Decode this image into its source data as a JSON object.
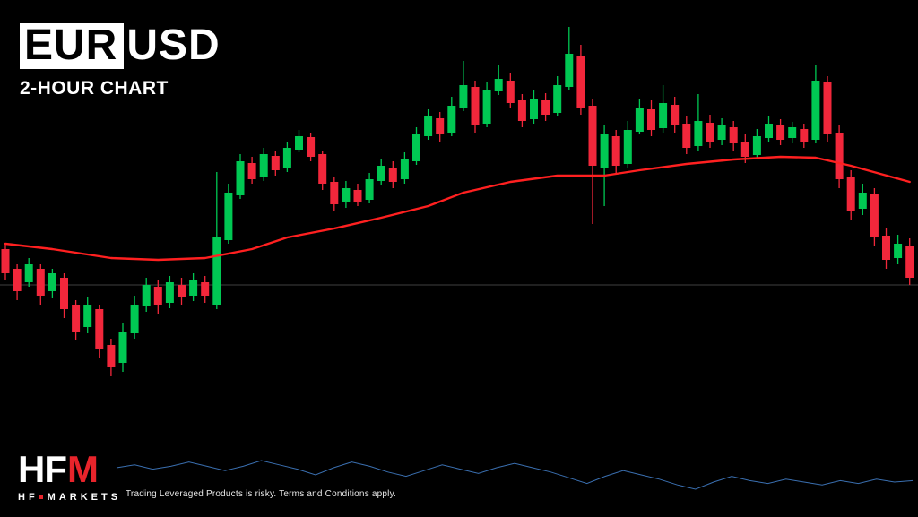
{
  "title": {
    "symbol_base": "EUR",
    "symbol_quote": "USD",
    "subtitle": "2-HOUR CHART"
  },
  "branding": {
    "logo_hf": "HF",
    "logo_m": "M",
    "word_1": "HF",
    "word_2": "MARKETS",
    "brand_red": "#e8242b"
  },
  "disclaimer": "Trading Leveraged Products is risky. Terms and Conditions apply.",
  "colors": {
    "background": "#000000",
    "bull": "#00c853",
    "bear": "#f2273b",
    "ma_line": "#ff2020",
    "gridline": "#3f3f3f",
    "indicator_line": "#3a6fb0"
  },
  "chart_data": {
    "type": "candlestick",
    "symbol": "EURUSD",
    "timeframe": "2-hour",
    "title": "EURUSD 2-Hour Chart",
    "axes_visible": false,
    "grid": "single horizontal line",
    "legend_position": "none",
    "gridline_price": 1.0782,
    "price_range_estimate": [
      1.068,
      1.107
    ],
    "candle_format": "ohlc",
    "candles": [
      [
        1.0822,
        1.0828,
        1.0788,
        1.0795
      ],
      [
        1.08,
        1.0805,
        1.0765,
        1.0775
      ],
      [
        1.0785,
        1.0812,
        1.078,
        1.0805
      ],
      [
        1.08,
        1.0805,
        1.076,
        1.077
      ],
      [
        1.0775,
        1.08,
        1.0767,
        1.0795
      ],
      [
        1.079,
        1.0795,
        1.0745,
        1.0755
      ],
      [
        1.076,
        1.0765,
        1.072,
        1.073
      ],
      [
        1.0735,
        1.0768,
        1.0728,
        1.076
      ],
      [
        1.0755,
        1.076,
        1.07,
        1.071
      ],
      [
        1.0715,
        1.0722,
        1.068,
        1.069
      ],
      [
        1.0695,
        1.074,
        1.0685,
        1.073
      ],
      [
        1.0728,
        1.077,
        1.0722,
        1.076
      ],
      [
        1.0758,
        1.079,
        1.0752,
        1.0782
      ],
      [
        1.078,
        1.0788,
        1.075,
        1.076
      ],
      [
        1.0762,
        1.0792,
        1.0756,
        1.0785
      ],
      [
        1.0782,
        1.079,
        1.076,
        1.0768
      ],
      [
        1.077,
        1.0795,
        1.0764,
        1.0788
      ],
      [
        1.0785,
        1.0792,
        1.0762,
        1.077
      ],
      [
        1.076,
        1.0908,
        1.0755,
        1.0835
      ],
      [
        1.0832,
        1.0895,
        1.0828,
        1.0885
      ],
      [
        1.0882,
        1.0928,
        1.0878,
        1.092
      ],
      [
        1.0918,
        1.0925,
        1.0895,
        1.09
      ],
      [
        1.0902,
        1.0935,
        1.0898,
        1.0928
      ],
      [
        1.0926,
        1.0932,
        1.0904,
        1.091
      ],
      [
        1.0912,
        1.0942,
        1.0908,
        1.0935
      ],
      [
        1.0933,
        1.0955,
        1.093,
        1.0948
      ],
      [
        1.0947,
        1.0952,
        1.092,
        1.0925
      ],
      [
        1.0928,
        1.0932,
        1.0888,
        1.0895
      ],
      [
        1.0897,
        1.0902,
        1.0865,
        1.0872
      ],
      [
        1.0874,
        1.0898,
        1.0868,
        1.089
      ],
      [
        1.0888,
        1.0895,
        1.087,
        1.0875
      ],
      [
        1.0877,
        1.0907,
        1.0873,
        1.09
      ],
      [
        1.0898,
        1.0922,
        1.0894,
        1.0915
      ],
      [
        1.0913,
        1.092,
        1.089,
        1.0897
      ],
      [
        1.09,
        1.093,
        1.0895,
        1.0922
      ],
      [
        1.092,
        1.0958,
        1.0916,
        1.095
      ],
      [
        1.0948,
        1.0978,
        1.0944,
        1.097
      ],
      [
        1.0968,
        1.0975,
        1.0942,
        1.095
      ],
      [
        1.0952,
        1.0992,
        1.0948,
        1.0982
      ],
      [
        1.098,
        1.1032,
        1.0976,
        1.1005
      ],
      [
        1.1003,
        1.101,
        1.0952,
        1.096
      ],
      [
        1.0962,
        1.1008,
        1.0958,
        1.1
      ],
      [
        1.0998,
        1.1028,
        1.0994,
        1.1012
      ],
      [
        1.101,
        1.1018,
        1.098,
        1.0985
      ],
      [
        1.0988,
        1.0995,
        1.0958,
        1.0965
      ],
      [
        1.0967,
        1.1,
        1.0962,
        1.099
      ],
      [
        1.0988,
        1.0996,
        1.0965,
        1.0972
      ],
      [
        1.0974,
        1.1015,
        1.097,
        1.1005
      ],
      [
        1.1003,
        1.107,
        1.1,
        1.104
      ],
      [
        1.1038,
        1.105,
        1.0972,
        1.098
      ],
      [
        1.0982,
        1.099,
        1.085,
        1.0915
      ],
      [
        1.0912,
        1.096,
        1.087,
        1.095
      ],
      [
        1.0948,
        1.0955,
        1.0905,
        1.0915
      ],
      [
        1.0917,
        1.0965,
        1.0912,
        1.0955
      ],
      [
        1.0953,
        1.099,
        1.095,
        1.098
      ],
      [
        1.0978,
        1.0988,
        1.0948,
        1.0955
      ],
      [
        1.0957,
        1.1005,
        1.0952,
        1.0985
      ],
      [
        1.0983,
        1.0992,
        1.0952,
        1.096
      ],
      [
        1.0962,
        1.097,
        1.0928,
        1.0935
      ],
      [
        1.0937,
        1.0995,
        1.0932,
        1.0965
      ],
      [
        1.0963,
        1.0972,
        1.0935,
        1.0942
      ],
      [
        1.0944,
        1.0968,
        1.0938,
        1.096
      ],
      [
        1.0958,
        1.0965,
        1.0932,
        1.094
      ],
      [
        1.0942,
        1.095,
        1.0918,
        1.0925
      ],
      [
        1.0927,
        1.0956,
        1.0922,
        1.0948
      ],
      [
        1.0946,
        1.097,
        1.0942,
        1.0962
      ],
      [
        1.096,
        1.0967,
        1.0938,
        1.0944
      ],
      [
        1.0946,
        1.0964,
        1.094,
        1.0958
      ],
      [
        1.0956,
        1.0962,
        1.0935,
        1.0942
      ],
      [
        1.0944,
        1.1028,
        1.094,
        1.101
      ],
      [
        1.1008,
        1.1015,
        1.0942,
        1.095
      ],
      [
        1.0952,
        1.096,
        1.089,
        1.09
      ],
      [
        1.0902,
        1.091,
        1.0855,
        1.0865
      ],
      [
        1.0867,
        1.0895,
        1.086,
        1.0885
      ],
      [
        1.0883,
        1.089,
        1.0825,
        1.0835
      ],
      [
        1.0837,
        1.0845,
        1.08,
        1.081
      ],
      [
        1.0812,
        1.0838,
        1.0805,
        1.0828
      ],
      [
        1.0826,
        1.0834,
        1.0782,
        1.079
      ]
    ],
    "overlays": [
      {
        "name": "moving-average",
        "style": "red line",
        "points": [
          [
            0,
            1.0828
          ],
          [
            4,
            1.0822
          ],
          [
            9,
            1.0812
          ],
          [
            13,
            1.081
          ],
          [
            17,
            1.0812
          ],
          [
            21,
            1.0822
          ],
          [
            24,
            1.0835
          ],
          [
            28,
            1.0845
          ],
          [
            32,
            1.0857
          ],
          [
            36,
            1.087
          ],
          [
            39,
            1.0885
          ],
          [
            43,
            1.0897
          ],
          [
            47,
            1.0904
          ],
          [
            51,
            1.0904
          ],
          [
            54,
            1.091
          ],
          [
            58,
            1.0917
          ],
          [
            62,
            1.0922
          ],
          [
            66,
            1.0925
          ],
          [
            69,
            1.0924
          ],
          [
            72,
            1.0915
          ],
          [
            77,
            1.0897
          ]
        ]
      }
    ],
    "sub_indicator": {
      "name": "lower-indicator-line",
      "style": "thin blue line",
      "values": [
        56,
        58,
        55,
        57,
        60,
        57,
        54,
        57,
        61,
        58,
        55,
        51,
        56,
        60,
        57,
        53,
        50,
        54,
        58,
        55,
        52,
        56,
        59,
        56,
        53,
        49,
        45,
        50,
        54,
        51,
        48,
        44,
        41,
        46,
        50,
        47,
        45,
        48,
        46,
        44,
        47,
        45,
        48,
        46,
        47
      ]
    }
  }
}
